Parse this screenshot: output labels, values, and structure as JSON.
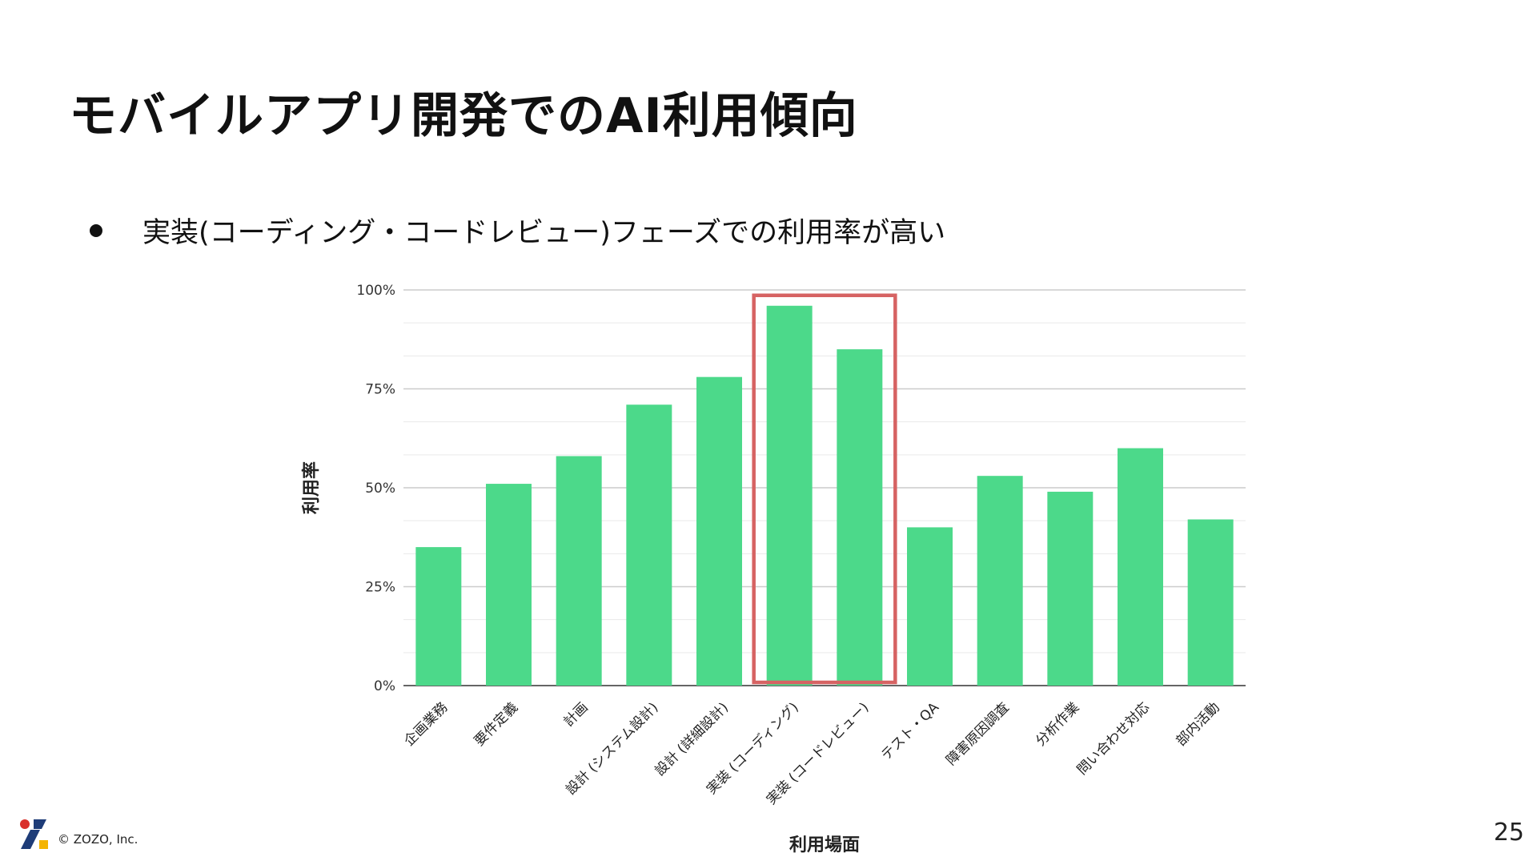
{
  "slide": {
    "title": "モバイルアプリ開発でのAI利用傾向",
    "bullet": "実装(コーディング・コードレビュー)フェーズでの利用率が高い",
    "copyright": "© ZOZO, Inc.",
    "page_number": "25"
  },
  "colors": {
    "bar": "#4cd98a",
    "highlight": "#d66363",
    "grid": "#cccccc",
    "axis": "#333333",
    "logo_red": "#d9302b",
    "logo_blue": "#1e3c78",
    "logo_yellow": "#f4b400"
  },
  "chart_data": {
    "type": "bar",
    "categories": [
      "企画業務",
      "要件定義",
      "計画",
      "設計 (システム設計)",
      "設計 (詳細設計)",
      "実装 (コーディング)",
      "実装 (コードレビュー)",
      "テスト・QA",
      "障害原因調査",
      "分析作業",
      "問い合わせ対応",
      "部内活動"
    ],
    "values": [
      35,
      51,
      58,
      71,
      78,
      96,
      85,
      40,
      53,
      49,
      60,
      42
    ],
    "ylim": [
      0,
      100
    ],
    "yticks": [
      0,
      25,
      50,
      75,
      100
    ],
    "ytick_labels": [
      "0%",
      "25%",
      "50%",
      "75%",
      "100%"
    ],
    "xlabel": "利用場面",
    "ylabel": "利用率",
    "highlight_categories": [
      "実装 (コーディング)",
      "実装 (コードレビュー)"
    ],
    "grid": true,
    "legend": "none"
  }
}
